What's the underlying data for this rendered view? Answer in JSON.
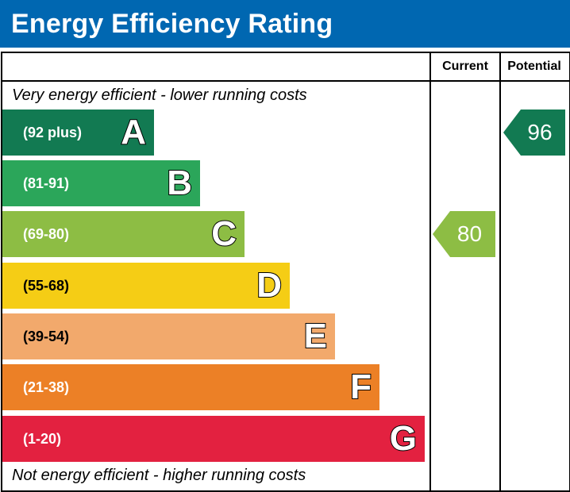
{
  "header": {
    "title": "Energy Efficiency Rating"
  },
  "columns": {
    "current": "Current",
    "potential": "Potential"
  },
  "notes": {
    "top": "Very energy efficient - lower running costs",
    "bottom": "Not energy efficient - higher running costs"
  },
  "colors": {
    "header_bg": "#0067b1",
    "A": "#127a52",
    "B": "#2ba65a",
    "C": "#8dbd44",
    "D": "#f5cd15",
    "E": "#f2a96c",
    "F": "#ec8026",
    "G": "#e32140"
  },
  "chart_data": {
    "type": "bar",
    "categories": [
      "A",
      "B",
      "C",
      "D",
      "E",
      "F",
      "G"
    ],
    "ranges": [
      "(92 plus)",
      "(81-91)",
      "(69-80)",
      "(55-68)",
      "(39-54)",
      "(21-38)",
      "(1-20)"
    ],
    "current": {
      "value": 80,
      "band": "C"
    },
    "potential": {
      "value": 96,
      "band": "A"
    }
  }
}
